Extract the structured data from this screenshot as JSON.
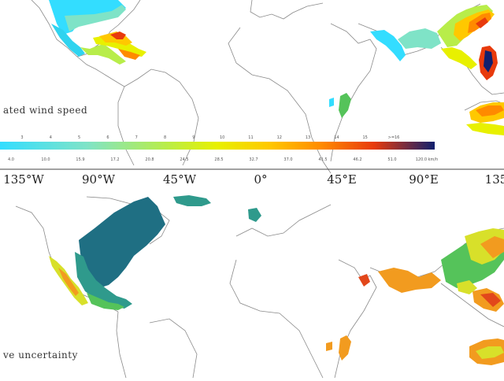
{
  "top_panel": {
    "label": "ated wind speed",
    "colorbar": {
      "upper_ticks": [
        "3",
        "4",
        "5",
        "6",
        "7",
        "8",
        "9",
        "10",
        "11",
        "12",
        "13",
        "14",
        "15",
        ">=16"
      ],
      "lower_ticks": [
        "4.0",
        "10.0",
        "15.9",
        "17.2",
        "20.8",
        "24.5",
        "28.5",
        "32.7",
        "37.0",
        "41.5",
        "46.2",
        "51.0",
        "120.0 km/h"
      ],
      "colors": [
        "#33ddff",
        "#7fe3c7",
        "#b8ed4a",
        "#e8f000",
        "#ffc800",
        "#ff8a00",
        "#e83a0c",
        "#10206e"
      ]
    }
  },
  "bottom_panel": {
    "label": "ve uncertainty"
  },
  "longitude_labels": [
    "135°W",
    "90°W",
    "45°W",
    "0°",
    "45°E",
    "90°E",
    "135"
  ],
  "colors": {
    "coast": "#8a8a8a",
    "teal_dark": "#1f6f83",
    "teal_mid": "#2f9a8c",
    "green": "#55c35a",
    "yellow": "#d8e02a",
    "orange": "#f29b1f",
    "red": "#e2471b",
    "cyan": "#2fd3ef"
  }
}
